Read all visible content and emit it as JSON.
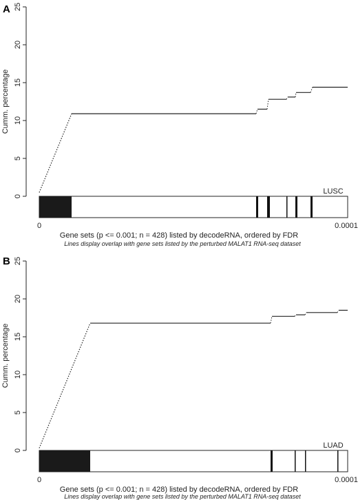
{
  "chart_data": [
    {
      "panel": "A",
      "type": "line",
      "tag": "LUSC",
      "ylabel": "Cumm. percentage",
      "ylim": [
        0,
        25
      ],
      "yticks": [
        0,
        5,
        10,
        15,
        20,
        25
      ],
      "xticks": [
        "0",
        "0.0001"
      ],
      "xlabel": "Gene sets (p <= 0.001; n = 428) listed by decodeRNA, ordered by FDR",
      "subtitle": "Lines display overlap with gene sets listed by the perturbed MALAT1 RNA-seq dataset",
      "dotted_segment": [
        [
          0,
          0.5
        ],
        [
          47,
          10.9
        ]
      ],
      "steps": [
        {
          "x0": 47,
          "x1": 315,
          "y": 10.9
        },
        {
          "x0": 317,
          "x1": 331,
          "y": 11.5
        },
        {
          "x0": 333,
          "x1": 359,
          "y": 12.8
        },
        {
          "x0": 361,
          "x1": 372,
          "y": 13.1
        },
        {
          "x0": 373,
          "x1": 394,
          "y": 13.7
        },
        {
          "x0": 397,
          "x1": 448,
          "y": 14.4
        }
      ],
      "barcode_dense": [
        0,
        47
      ],
      "barcode_lines": [
        {
          "x": 315,
          "w": 3
        },
        {
          "x": 331,
          "w": 4
        },
        {
          "x": 359,
          "w": 1.5
        },
        {
          "x": 372,
          "w": 3
        },
        {
          "x": 394,
          "w": 3
        }
      ]
    },
    {
      "panel": "B",
      "type": "line",
      "tag": "LUAD",
      "ylabel": "Cumm. percentage",
      "ylim": [
        0,
        25
      ],
      "yticks": [
        0,
        5,
        10,
        15,
        20,
        25
      ],
      "xticks": [
        "0",
        "0.0001"
      ],
      "xlabel": "Gene sets (p <= 0.001; n = 428) listed by decodeRNA, ordered by FDR",
      "subtitle": "Lines display overlap with gene sets listed by the perturbed MALAT1 RNA-seq dataset",
      "dotted_segment": [
        [
          0,
          0.3
        ],
        [
          74,
          16.8
        ]
      ],
      "steps": [
        {
          "x0": 74,
          "x1": 336,
          "y": 16.8
        },
        {
          "x0": 338,
          "x1": 371,
          "y": 17.7
        },
        {
          "x0": 373,
          "x1": 386,
          "y": 17.9
        },
        {
          "x0": 388,
          "x1": 433,
          "y": 18.2
        },
        {
          "x0": 435,
          "x1": 448,
          "y": 18.5
        }
      ],
      "barcode_dense": [
        0,
        74
      ],
      "barcode_lines": [
        {
          "x": 336,
          "w": 3
        },
        {
          "x": 371,
          "w": 1.5
        },
        {
          "x": 386,
          "w": 1.5
        },
        {
          "x": 433,
          "w": 1.5
        }
      ]
    }
  ]
}
